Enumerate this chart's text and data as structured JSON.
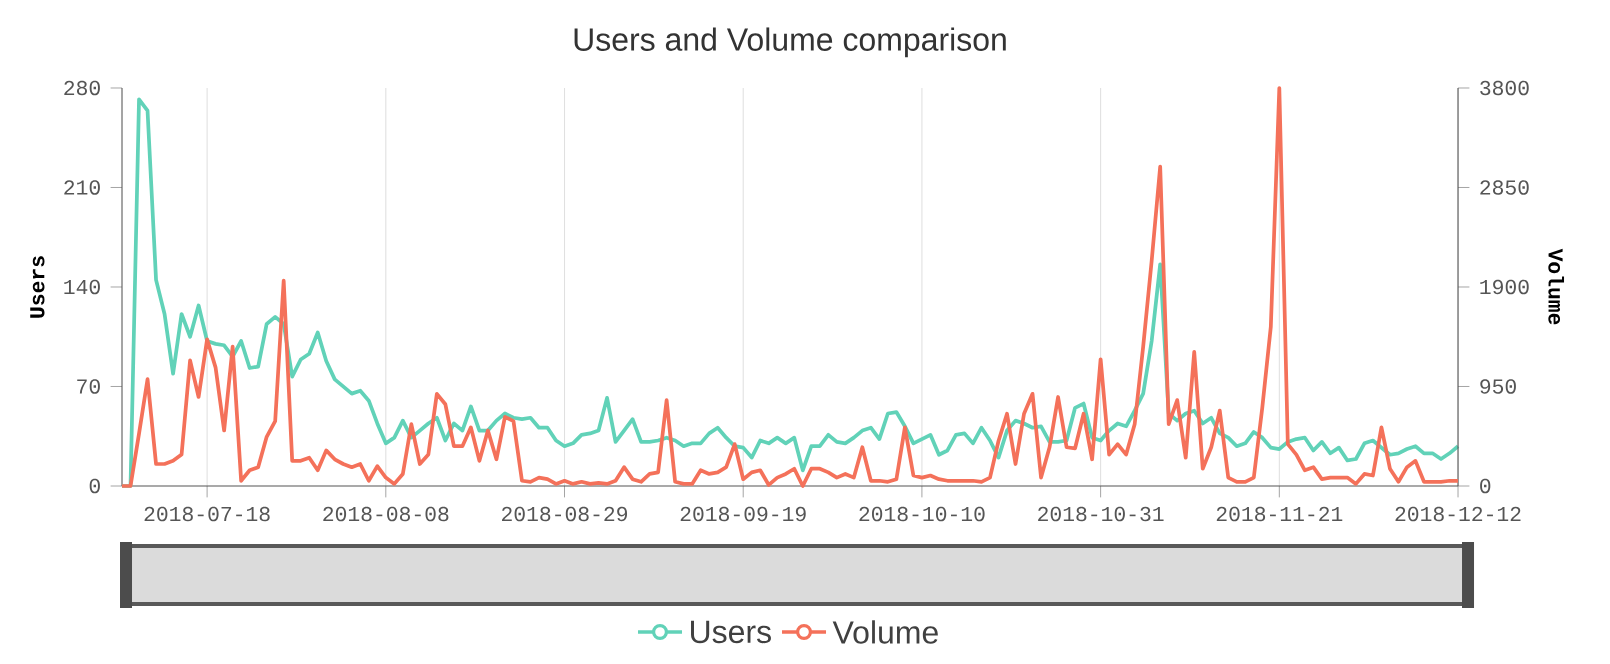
{
  "chart_data": {
    "type": "line",
    "title": "Users and Volume comparison",
    "ylabel": "Users",
    "y2label": "Volume",
    "x": [
      "2018-07-08",
      "2018-07-09",
      "2018-07-10",
      "2018-07-11",
      "2018-07-12",
      "2018-07-13",
      "2018-07-14",
      "2018-07-15",
      "2018-07-16",
      "2018-07-17",
      "2018-07-18",
      "2018-07-19",
      "2018-07-20",
      "2018-07-21",
      "2018-07-22",
      "2018-07-23",
      "2018-07-24",
      "2018-07-25",
      "2018-07-26",
      "2018-07-27",
      "2018-07-28",
      "2018-07-29",
      "2018-07-30",
      "2018-07-31",
      "2018-08-01",
      "2018-08-02",
      "2018-08-03",
      "2018-08-04",
      "2018-08-05",
      "2018-08-06",
      "2018-08-07",
      "2018-08-08",
      "2018-08-09",
      "2018-08-10",
      "2018-08-11",
      "2018-08-12",
      "2018-08-13",
      "2018-08-14",
      "2018-08-15",
      "2018-08-16",
      "2018-08-17",
      "2018-08-18",
      "2018-08-19",
      "2018-08-20",
      "2018-08-21",
      "2018-08-22",
      "2018-08-23",
      "2018-08-24",
      "2018-08-25",
      "2018-08-26",
      "2018-08-27",
      "2018-08-28",
      "2018-08-29",
      "2018-08-30",
      "2018-08-31",
      "2018-09-01",
      "2018-09-02",
      "2018-09-03",
      "2018-09-04",
      "2018-09-05",
      "2018-09-06",
      "2018-09-07",
      "2018-09-08",
      "2018-09-09",
      "2018-09-10",
      "2018-09-11",
      "2018-09-12",
      "2018-09-13",
      "2018-09-14",
      "2018-09-15",
      "2018-09-16",
      "2018-09-17",
      "2018-09-18",
      "2018-09-19",
      "2018-09-20",
      "2018-09-21",
      "2018-09-22",
      "2018-09-23",
      "2018-09-24",
      "2018-09-25",
      "2018-09-26",
      "2018-09-27",
      "2018-09-28",
      "2018-09-29",
      "2018-09-30",
      "2018-10-01",
      "2018-10-02",
      "2018-10-03",
      "2018-10-04",
      "2018-10-05",
      "2018-10-06",
      "2018-10-07",
      "2018-10-08",
      "2018-10-09",
      "2018-10-10",
      "2018-10-11",
      "2018-10-12",
      "2018-10-13",
      "2018-10-14",
      "2018-10-15",
      "2018-10-16",
      "2018-10-17",
      "2018-10-18",
      "2018-10-19",
      "2018-10-20",
      "2018-10-21",
      "2018-10-22",
      "2018-10-23",
      "2018-10-24",
      "2018-10-25",
      "2018-10-26",
      "2018-10-27",
      "2018-10-28",
      "2018-10-29",
      "2018-10-30",
      "2018-10-31",
      "2018-11-01",
      "2018-11-02",
      "2018-11-03",
      "2018-11-04",
      "2018-11-05",
      "2018-11-06",
      "2018-11-07",
      "2018-11-08",
      "2018-11-09",
      "2018-11-10",
      "2018-11-11",
      "2018-11-12",
      "2018-11-13",
      "2018-11-14",
      "2018-11-15",
      "2018-11-16",
      "2018-11-17",
      "2018-11-18",
      "2018-11-19",
      "2018-11-20",
      "2018-11-21",
      "2018-11-22",
      "2018-11-23",
      "2018-11-24",
      "2018-11-25",
      "2018-11-26",
      "2018-11-27",
      "2018-11-28",
      "2018-11-29",
      "2018-11-30",
      "2018-12-01",
      "2018-12-02",
      "2018-12-03",
      "2018-12-04",
      "2018-12-05",
      "2018-12-06",
      "2018-12-07",
      "2018-12-08",
      "2018-12-09",
      "2018-12-10",
      "2018-12-11",
      "2018-12-12"
    ],
    "series": [
      {
        "name": "Users",
        "color": "#61d2b8",
        "values": [
          0,
          0,
          272,
          264,
          145,
          121,
          79,
          121,
          105,
          127,
          102,
          100,
          99,
          91,
          102,
          83,
          84,
          114,
          119,
          114,
          77,
          89,
          93,
          108,
          88,
          75,
          70,
          65,
          67,
          60,
          44,
          30,
          34,
          46,
          34,
          39,
          44,
          48,
          32,
          44,
          39,
          56,
          39,
          39,
          46,
          51,
          48,
          47,
          48,
          41,
          41,
          32,
          28,
          30,
          36,
          37,
          39,
          62,
          31,
          39,
          47,
          31,
          31,
          32,
          34,
          32,
          28,
          30,
          30,
          37,
          41,
          34,
          28,
          27,
          20,
          32,
          30,
          34,
          30,
          34,
          11,
          28,
          28,
          36,
          31,
          30,
          34,
          39,
          41,
          33,
          51,
          52,
          42,
          30,
          33,
          36,
          22,
          25,
          36,
          37,
          30,
          41,
          32,
          20,
          39,
          46,
          44,
          41,
          42,
          31,
          31,
          32,
          55,
          58,
          34,
          32,
          39,
          44,
          42,
          53,
          65,
          102,
          156,
          51,
          46,
          51,
          53,
          44,
          48,
          37,
          34,
          28,
          30,
          38,
          34,
          27,
          26,
          31,
          33,
          34,
          25,
          31,
          23,
          27,
          18,
          19,
          30,
          32,
          27,
          22,
          23,
          26,
          28,
          23,
          23,
          19,
          23,
          28
        ]
      },
      {
        "name": "Volume",
        "color": "#f4715a",
        "axis": "y2",
        "values": [
          0,
          0,
          500,
          1020,
          210,
          210,
          240,
          300,
          1200,
          850,
          1400,
          1130,
          530,
          1330,
          50,
          150,
          180,
          470,
          620,
          1960,
          240,
          240,
          270,
          150,
          340,
          255,
          210,
          180,
          210,
          50,
          190,
          80,
          20,
          115,
          590,
          210,
          300,
          880,
          780,
          380,
          380,
          560,
          240,
          530,
          255,
          660,
          620,
          50,
          40,
          80,
          65,
          20,
          50,
          20,
          40,
          20,
          30,
          20,
          50,
          180,
          65,
          40,
          115,
          130,
          820,
          40,
          20,
          20,
          150,
          115,
          130,
          180,
          400,
          65,
          130,
          150,
          10,
          80,
          115,
          165,
          0,
          165,
          165,
          130,
          80,
          115,
          80,
          370,
          50,
          50,
          40,
          65,
          560,
          100,
          80,
          100,
          65,
          50,
          50,
          50,
          50,
          40,
          80,
          430,
          690,
          210,
          690,
          880,
          80,
          370,
          850,
          370,
          360,
          690,
          255,
          1210,
          300,
          400,
          300,
          590,
          1330,
          2150,
          3050,
          590,
          820,
          270,
          1280,
          165,
          370,
          720,
          80,
          40,
          40,
          80,
          750,
          1520,
          3800,
          400,
          300,
          150,
          180,
          65,
          80,
          80,
          80,
          20,
          115,
          100,
          560,
          165,
          40,
          180,
          240,
          40,
          40,
          40,
          50,
          50
        ]
      }
    ],
    "xlim": [
      "2018-07-08",
      "2018-12-12"
    ],
    "xticks": [
      "2018-07-18",
      "2018-08-08",
      "2018-08-29",
      "2018-09-19",
      "2018-10-10",
      "2018-10-31",
      "2018-11-21",
      "2018-12-12"
    ],
    "ylim": [
      0,
      280
    ],
    "yticks": [
      0,
      70,
      140,
      210,
      280
    ],
    "y2lim": [
      0,
      3800
    ],
    "y2ticks": [
      0,
      950,
      1900,
      2850,
      3800
    ],
    "grid": "x",
    "legend": "bottom"
  }
}
